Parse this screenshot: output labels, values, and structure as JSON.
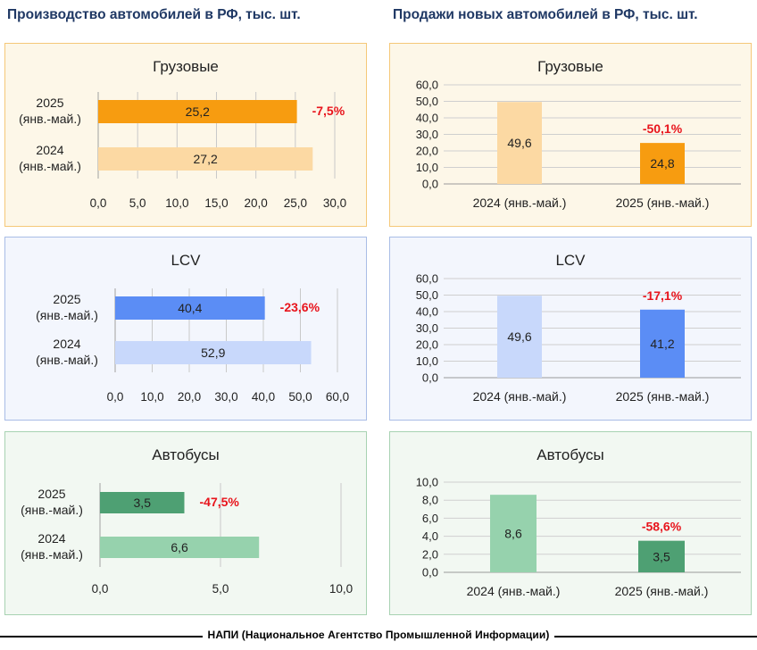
{
  "header": {
    "left_title": "Производство автомобилей в РФ, тыс. шт.",
    "right_title": "Продажи новых автомобилей в РФ, тыс. шт."
  },
  "footer": {
    "text": "НАПИ (Национальное Агентство Промышленной Информации)"
  },
  "chart_data": [
    {
      "type": "bar",
      "orientation": "horizontal",
      "title": "Грузовые",
      "categories": [
        [
          "2025",
          "(янв.-май.)"
        ],
        [
          "2024",
          "(янв.-май.)"
        ]
      ],
      "values": [
        25.2,
        27.2
      ],
      "value_labels": [
        "25,2",
        "27,2"
      ],
      "change_label": "-7,5%",
      "xlim": [
        0,
        30
      ],
      "ticks": [
        "0,0",
        "5,0",
        "10,0",
        "15,0",
        "20,0",
        "25,0",
        "30,0"
      ],
      "colors": [
        "#f79c10",
        "#fcd9a3"
      ],
      "theme": "orange"
    },
    {
      "type": "bar",
      "orientation": "horizontal",
      "title": "LCV",
      "categories": [
        [
          "2025",
          "(янв.-май.)"
        ],
        [
          "2024",
          "(янв.-май.)"
        ]
      ],
      "values": [
        40.4,
        52.9
      ],
      "value_labels": [
        "40,4",
        "52,9"
      ],
      "change_label": "-23,6%",
      "xlim": [
        0,
        60
      ],
      "ticks": [
        "0,0",
        "10,0",
        "20,0",
        "30,0",
        "40,0",
        "50,0",
        "60,0"
      ],
      "colors": [
        "#5b8df5",
        "#c8d8fb"
      ],
      "theme": "blue"
    },
    {
      "type": "bar",
      "orientation": "horizontal",
      "title": "Автобусы",
      "categories": [
        [
          "2025",
          "(янв.-май.)"
        ],
        [
          "2024",
          "(янв.-май.)"
        ]
      ],
      "values": [
        3.5,
        6.6
      ],
      "value_labels": [
        "3,5",
        "6,6"
      ],
      "change_label": "-47,5%",
      "xlim": [
        0,
        10
      ],
      "ticks": [
        "0,0",
        "5,0",
        "10,0"
      ],
      "colors": [
        "#4ea073",
        "#96d2ad"
      ],
      "theme": "green"
    },
    {
      "type": "bar",
      "orientation": "vertical",
      "title": "Грузовые",
      "categories": [
        "2024 (янв.-май.)",
        "2025 (янв.-май.)"
      ],
      "values": [
        49.6,
        24.8
      ],
      "value_labels": [
        "49,6",
        "24,8"
      ],
      "change_label": "-50,1%",
      "ylim": [
        0,
        60
      ],
      "ticks": [
        "0,0",
        "10,0",
        "20,0",
        "30,0",
        "40,0",
        "50,0",
        "60,0"
      ],
      "colors": [
        "#fcd9a3",
        "#f79c10"
      ],
      "theme": "orange"
    },
    {
      "type": "bar",
      "orientation": "vertical",
      "title": "LCV",
      "categories": [
        "2024 (янв.-май.)",
        "2025 (янв.-май.)"
      ],
      "values": [
        49.6,
        41.2
      ],
      "value_labels": [
        "49,6",
        "41,2"
      ],
      "change_label": "-17,1%",
      "ylim": [
        0,
        60
      ],
      "ticks": [
        "0,0",
        "10,0",
        "20,0",
        "30,0",
        "40,0",
        "50,0",
        "60,0"
      ],
      "colors": [
        "#c8d8fb",
        "#5b8df5"
      ],
      "theme": "blue"
    },
    {
      "type": "bar",
      "orientation": "vertical",
      "title": "Автобусы",
      "categories": [
        "2024 (янв.-май.)",
        "2025 (янв.-май.)"
      ],
      "values": [
        8.6,
        3.5
      ],
      "value_labels": [
        "8,6",
        "3,5"
      ],
      "change_label": "-58,6%",
      "ylim": [
        0,
        10
      ],
      "ticks": [
        "0,0",
        "2,0",
        "4,0",
        "6,0",
        "8,0",
        "10,0"
      ],
      "colors": [
        "#96d2ad",
        "#4ea073"
      ],
      "theme": "green"
    }
  ]
}
